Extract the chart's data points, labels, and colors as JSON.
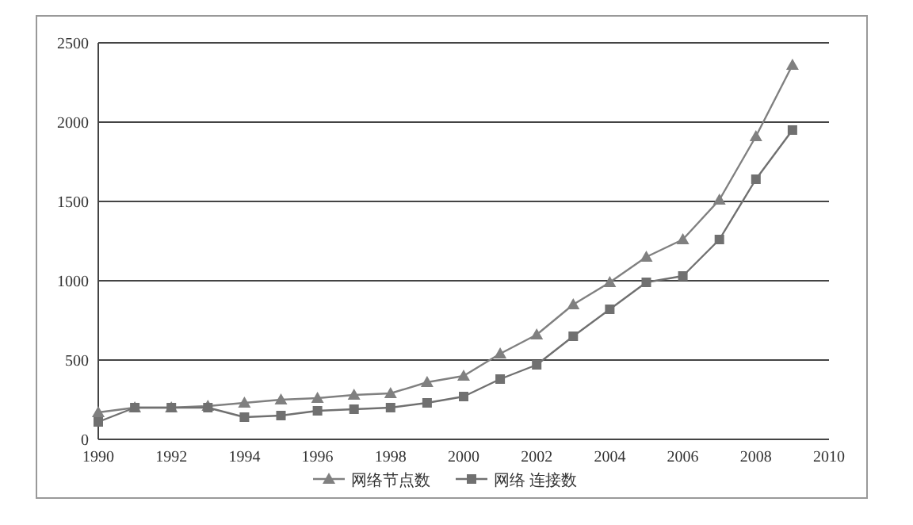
{
  "chart_data": {
    "type": "line",
    "x": [
      1990,
      1991,
      1992,
      1993,
      1994,
      1995,
      1996,
      1997,
      1998,
      1999,
      2000,
      2001,
      2002,
      2003,
      2004,
      2005,
      2006,
      2007,
      2008,
      2009
    ],
    "series": [
      {
        "name": "网络节点数",
        "color": "#808080",
        "marker": "triangle",
        "values": [
          170,
          200,
          200,
          210,
          230,
          250,
          260,
          280,
          290,
          360,
          400,
          540,
          660,
          850,
          990,
          1150,
          1260,
          1510,
          1910,
          2360
        ]
      },
      {
        "name": "网络 连接数",
        "color": "#707070",
        "marker": "square",
        "values": [
          110,
          200,
          200,
          200,
          140,
          150,
          180,
          190,
          200,
          230,
          270,
          380,
          470,
          650,
          820,
          990,
          1030,
          1260,
          1640,
          1950
        ]
      }
    ],
    "xlim": [
      1990,
      2010
    ],
    "xticks": [
      1990,
      1992,
      1994,
      1996,
      1998,
      2000,
      2002,
      2004,
      2006,
      2008,
      2010
    ],
    "ylim": [
      0,
      2500
    ],
    "yticks": [
      0,
      500,
      1000,
      1500,
      2000,
      2500
    ],
    "grid": "y",
    "legend": "bottom"
  }
}
